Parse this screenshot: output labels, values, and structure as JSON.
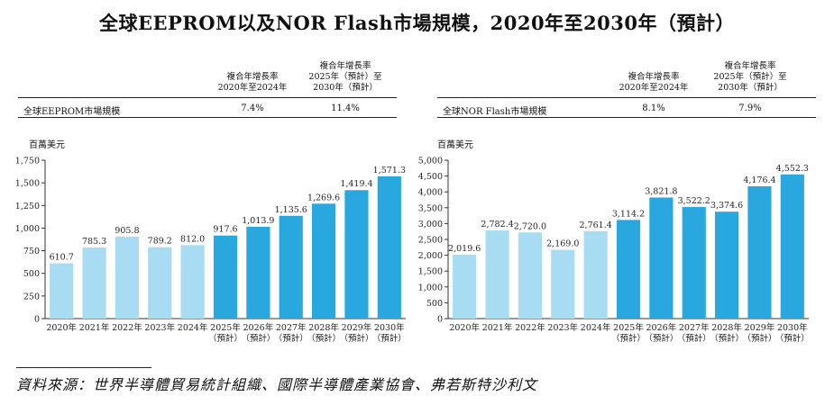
{
  "title": "全球EEPROM以及NOR Flash市場規模，2020年至2030年（預計）",
  "colors": {
    "historical": "#a8dcf2",
    "forecast": "#29a8df",
    "axis": "#333333"
  },
  "tables": [
    {
      "col1_header_l1": "複合年增長率",
      "col1_header_l2": "2020年至2024年",
      "col2_header_l1": "複合年增長率",
      "col2_header_l2": "2025年（預計）至",
      "col2_header_l3": "2030年（預計）",
      "row_label": "全球EEPROM市場規模",
      "col1_value": "7.4%",
      "col2_value": "11.4%"
    },
    {
      "col1_header_l1": "複合年增長率",
      "col1_header_l2": "2020年至2024年",
      "col2_header_l1": "複合年增長率",
      "col2_header_l2": "2025年（預計）至",
      "col2_header_l3": "2030年（預計）",
      "row_label": "全球NOR Flash市場規模",
      "col1_value": "8.1%",
      "col2_value": "7.9%"
    }
  ],
  "chart_data": [
    {
      "type": "bar",
      "title": "全球EEPROM市場規模",
      "ylabel": "百萬美元",
      "categories": [
        "2020年",
        "2021年",
        "2022年",
        "2023年",
        "2024年",
        "2025年",
        "2026年",
        "2027年",
        "2028年",
        "2029年",
        "2030年"
      ],
      "category_sub": [
        "",
        "",
        "",
        "",
        "",
        "（預計）",
        "（預計）",
        "（預計）",
        "（預計）",
        "（預計）",
        "（預計）"
      ],
      "values": [
        610.7,
        785.3,
        905.8,
        789.2,
        812.0,
        917.6,
        1013.9,
        1135.6,
        1269.6,
        1419.4,
        1571.3
      ],
      "value_labels": [
        "610.7",
        "785.3",
        "905.8",
        "789.2",
        "812.0",
        "917.6",
        "1,013.9",
        "1,135.6",
        "1,269.6",
        "1,419.4",
        "1,571.3"
      ],
      "forecast_flags": [
        false,
        false,
        false,
        false,
        false,
        true,
        true,
        true,
        true,
        true,
        true
      ],
      "ylim": [
        0,
        1750
      ],
      "yticks": [
        0,
        250,
        500,
        750,
        1000,
        1250,
        1500,
        1750
      ],
      "ytick_labels": [
        "0",
        "250",
        "500",
        "750",
        "1,000",
        "1,250",
        "1,500",
        "1,750"
      ]
    },
    {
      "type": "bar",
      "title": "全球NOR Flash市場規模",
      "ylabel": "百萬美元",
      "categories": [
        "2020年",
        "2021年",
        "2022年",
        "2023年",
        "2024年",
        "2025年",
        "2026年",
        "2027年",
        "2028年",
        "2029年",
        "2030年"
      ],
      "category_sub": [
        "",
        "",
        "",
        "",
        "",
        "（預計）",
        "（預計）",
        "（預計）",
        "（預計）",
        "（預計）",
        "（預計）"
      ],
      "values": [
        2019.6,
        2782.4,
        2720.0,
        2169.0,
        2761.4,
        3114.2,
        3821.8,
        3522.2,
        3374.6,
        4176.4,
        4552.3
      ],
      "value_labels": [
        "2,019.6",
        "2,782.4",
        "2,720.0",
        "2,169.0",
        "2,761.4",
        "3,114.2",
        "3,821.8",
        "3,522.2",
        "3,374.6",
        "4,176.4",
        "4,552.3"
      ],
      "forecast_flags": [
        false,
        false,
        false,
        false,
        false,
        true,
        true,
        true,
        true,
        true,
        true
      ],
      "ylim": [
        0,
        5000
      ],
      "yticks": [
        0,
        500,
        1000,
        1500,
        2000,
        2500,
        3000,
        3500,
        4000,
        4500,
        5000
      ],
      "ytick_labels": [
        "0",
        "500",
        "1,000",
        "1,500",
        "2,000",
        "2,500",
        "3,000",
        "3,500",
        "4,000",
        "4,500",
        "5,000"
      ]
    }
  ],
  "source": "資料來源：世界半導體貿易統計組織、國際半導體產業協會、弗若斯特沙利文"
}
